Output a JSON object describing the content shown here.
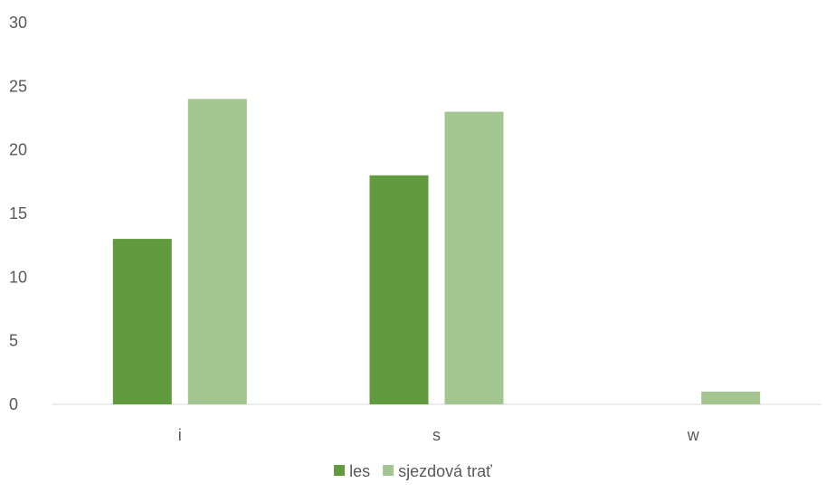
{
  "chart_data": {
    "type": "bar",
    "categories": [
      "i",
      "s",
      "w"
    ],
    "series": [
      {
        "name": "les",
        "values": [
          13,
          18,
          0
        ],
        "color": "#629b3f"
      },
      {
        "name": "sjezdová trať",
        "values": [
          24,
          23,
          1
        ],
        "color": "#a3c58f"
      }
    ],
    "ylim": [
      0,
      30
    ],
    "yticks": [
      0,
      5,
      10,
      15,
      20,
      25,
      30
    ],
    "grid": false,
    "legend_position": "bottom"
  }
}
